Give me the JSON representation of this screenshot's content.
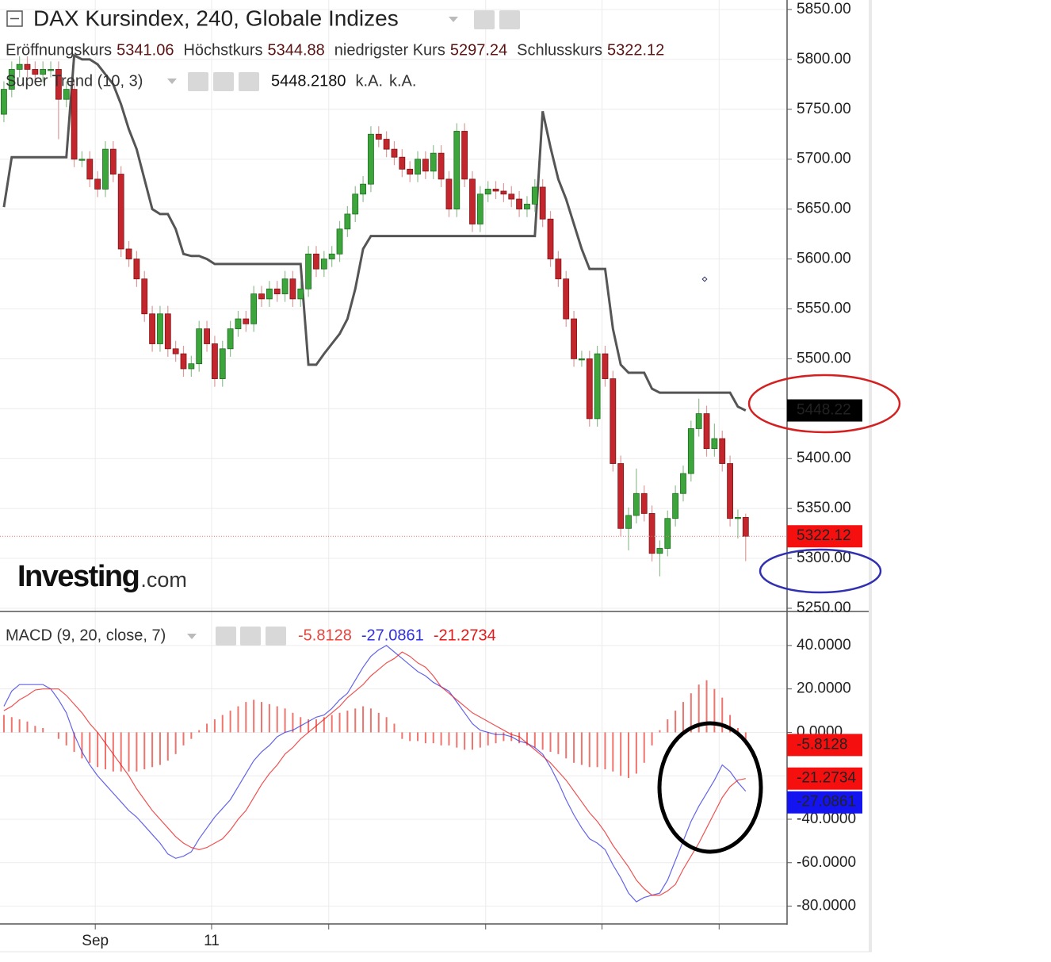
{
  "chart_data": [
    {
      "type": "candlestick",
      "title": "DAX Kursindex, 240, Globale Indizes",
      "ohlc_legend": [
        {
          "name": "Eröffnungskurs",
          "value": 5341.06
        },
        {
          "name": "Höchstkurs",
          "value": 5344.88
        },
        {
          "name": "niedrigster Kurs",
          "value": 5297.24
        },
        {
          "name": "Schlusskurs",
          "value": 5322.12
        }
      ],
      "ohlc": [
        [
          5745,
          5778,
          5737,
          5770
        ],
        [
          5770,
          5798,
          5762,
          5790
        ],
        [
          5790,
          5803,
          5782,
          5795
        ],
        [
          5795,
          5803,
          5782,
          5790
        ],
        [
          5790,
          5798,
          5777,
          5785
        ],
        [
          5785,
          5798,
          5777,
          5790
        ],
        [
          5790,
          5798,
          5782,
          5790
        ],
        [
          5790,
          5798,
          5720,
          5760
        ],
        [
          5760,
          5778,
          5752,
          5770
        ],
        [
          5770,
          5778,
          5692,
          5700
        ],
        [
          5700,
          5708,
          5692,
          5700
        ],
        [
          5700,
          5708,
          5672,
          5680
        ],
        [
          5680,
          5688,
          5662,
          5670
        ],
        [
          5670,
          5718,
          5662,
          5710
        ],
        [
          5710,
          5718,
          5677,
          5685
        ],
        [
          5685,
          5693,
          5602,
          5610
        ],
        [
          5610,
          5618,
          5592,
          5600
        ],
        [
          5600,
          5608,
          5572,
          5580
        ],
        [
          5580,
          5588,
          5537,
          5545
        ],
        [
          5545,
          5553,
          5507,
          5515
        ],
        [
          5515,
          5553,
          5507,
          5545
        ],
        [
          5545,
          5553,
          5502,
          5510
        ],
        [
          5510,
          5518,
          5497,
          5505
        ],
        [
          5505,
          5513,
          5482,
          5490
        ],
        [
          5490,
          5503,
          5482,
          5495
        ],
        [
          5495,
          5538,
          5487,
          5530
        ],
        [
          5530,
          5538,
          5507,
          5515
        ],
        [
          5515,
          5523,
          5472,
          5480
        ],
        [
          5480,
          5518,
          5472,
          5510
        ],
        [
          5510,
          5538,
          5502,
          5530
        ],
        [
          5530,
          5548,
          5522,
          5540
        ],
        [
          5540,
          5548,
          5527,
          5535
        ],
        [
          5535,
          5573,
          5527,
          5565
        ],
        [
          5565,
          5573,
          5552,
          5560
        ],
        [
          5560,
          5578,
          5552,
          5570
        ],
        [
          5570,
          5578,
          5557,
          5565
        ],
        [
          5565,
          5588,
          5557,
          5580
        ],
        [
          5580,
          5588,
          5552,
          5560
        ],
        [
          5560,
          5578,
          5552,
          5570
        ],
        [
          5570,
          5613,
          5562,
          5605
        ],
        [
          5605,
          5613,
          5582,
          5590
        ],
        [
          5590,
          5608,
          5582,
          5600
        ],
        [
          5600,
          5613,
          5592,
          5605
        ],
        [
          5605,
          5638,
          5597,
          5630
        ],
        [
          5630,
          5653,
          5622,
          5645
        ],
        [
          5645,
          5673,
          5637,
          5665
        ],
        [
          5665,
          5683,
          5657,
          5675
        ],
        [
          5675,
          5733,
          5667,
          5725
        ],
        [
          5725,
          5733,
          5712,
          5720
        ],
        [
          5720,
          5728,
          5702,
          5710
        ],
        [
          5710,
          5718,
          5694,
          5702
        ],
        [
          5702,
          5710,
          5682,
          5690
        ],
        [
          5690,
          5698,
          5677,
          5685
        ],
        [
          5685,
          5708,
          5677,
          5700
        ],
        [
          5700,
          5708,
          5680,
          5688
        ],
        [
          5688,
          5714,
          5680,
          5706
        ],
        [
          5706,
          5714,
          5672,
          5680
        ],
        [
          5680,
          5688,
          5642,
          5650
        ],
        [
          5650,
          5736,
          5642,
          5728
        ],
        [
          5728,
          5736,
          5672,
          5680
        ],
        [
          5680,
          5688,
          5627,
          5635
        ],
        [
          5635,
          5673,
          5627,
          5665
        ],
        [
          5665,
          5678,
          5657,
          5670
        ],
        [
          5670,
          5678,
          5660,
          5668
        ],
        [
          5668,
          5676,
          5657,
          5665
        ],
        [
          5665,
          5673,
          5652,
          5660
        ],
        [
          5660,
          5668,
          5642,
          5650
        ],
        [
          5650,
          5663,
          5642,
          5655
        ],
        [
          5655,
          5680,
          5647,
          5672
        ],
        [
          5672,
          5680,
          5632,
          5640
        ],
        [
          5640,
          5648,
          5592,
          5600
        ],
        [
          5600,
          5608,
          5572,
          5580
        ],
        [
          5580,
          5588,
          5532,
          5540
        ],
        [
          5540,
          5548,
          5492,
          5500
        ],
        [
          5500,
          5508,
          5492,
          5500
        ],
        [
          5500,
          5508,
          5432,
          5440
        ],
        [
          5440,
          5513,
          5432,
          5505
        ],
        [
          5505,
          5513,
          5472,
          5480
        ],
        [
          5480,
          5488,
          5387,
          5395
        ],
        [
          5395,
          5403,
          5322,
          5330
        ],
        [
          5330,
          5351,
          5308,
          5343
        ],
        [
          5343,
          5390,
          5335,
          5365
        ],
        [
          5365,
          5373,
          5337,
          5345
        ],
        [
          5345,
          5353,
          5297,
          5305
        ],
        [
          5305,
          5318,
          5282,
          5310
        ],
        [
          5310,
          5348,
          5302,
          5340
        ],
        [
          5340,
          5373,
          5332,
          5365
        ],
        [
          5365,
          5393,
          5357,
          5385
        ],
        [
          5385,
          5438,
          5377,
          5430
        ],
        [
          5430,
          5460,
          5422,
          5445
        ],
        [
          5445,
          5453,
          5402,
          5410
        ],
        [
          5410,
          5435,
          5402,
          5420
        ],
        [
          5420,
          5428,
          5387,
          5395
        ],
        [
          5395,
          5403,
          5332,
          5340
        ],
        [
          5340,
          5349,
          5320,
          5341.06
        ],
        [
          5341.06,
          5344.88,
          5297.24,
          5322.12
        ]
      ],
      "up_color": "#3ca63c",
      "down_color": "#c3262d",
      "overlay": {
        "name": "Super Trend (10, 3)",
        "color": "#555555",
        "values": [
          5652,
          5702,
          5702,
          5702,
          5702,
          5702,
          5702,
          5702,
          5702,
          5804,
          5800,
          5800,
          5795,
          5785,
          5775,
          5755,
          5730,
          5710,
          5680,
          5650,
          5645,
          5645,
          5630,
          5605,
          5603,
          5603,
          5600,
          5595,
          5595,
          5595,
          5595,
          5595,
          5595,
          5595,
          5595,
          5595,
          5595,
          5595,
          5595,
          5494,
          5494,
          5505,
          5515,
          5525,
          5540,
          5570,
          5610,
          5623,
          5623,
          5623,
          5623,
          5623,
          5623,
          5623,
          5623,
          5623,
          5623,
          5623,
          5623,
          5623,
          5623,
          5623,
          5623,
          5623,
          5623,
          5623,
          5623,
          5623,
          5623,
          5748,
          5712,
          5680,
          5660,
          5635,
          5610,
          5590,
          5590,
          5590,
          5530,
          5494,
          5486,
          5486,
          5486,
          5470,
          5466,
          5466,
          5466,
          5466,
          5466,
          5466,
          5466,
          5466,
          5466,
          5466,
          5452,
          5448.218
        ],
        "last_value": {
          "value": 5448.218,
          "label": "5448.2180"
        },
        "status": [
          "k.A.",
          "k.A."
        ],
        "marker_label": "5448.22"
      },
      "brand": "Investing",
      "brand_suffix": ".com",
      "xlim": [
        -0.5,
        100.3
      ],
      "ylim": [
        5247.6,
        5859.5
      ],
      "yticks": [
        {
          "value": 5250,
          "label": "5250.00"
        },
        {
          "value": 5300,
          "label": "5300.00"
        },
        {
          "value": 5350,
          "label": "5350.00"
        },
        {
          "value": 5400,
          "label": "5400.00"
        },
        {
          "value": 5450,
          "label": "5450.00"
        },
        {
          "value": 5500,
          "label": "5500.00"
        },
        {
          "value": 5550,
          "label": "5550.00"
        },
        {
          "value": 5600,
          "label": "5600.00"
        },
        {
          "value": 5650,
          "label": "5650.00"
        },
        {
          "value": 5700,
          "label": "5700.00"
        },
        {
          "value": 5750,
          "label": "5750.00"
        },
        {
          "value": 5800,
          "label": "5800.00"
        },
        {
          "value": 5850,
          "label": "5850.00"
        }
      ],
      "grid": true
    },
    {
      "type": "macd",
      "title": "MACD (9, 20, close, 7)",
      "series": [
        {
          "style": "bar",
          "color": "#e8453c",
          "values": [
            8,
            7,
            6,
            5,
            3,
            2,
            0,
            -3,
            -6,
            -9,
            -12,
            -14,
            -16,
            -17,
            -18,
            -18,
            -18,
            -18,
            -17,
            -16,
            -15,
            -13,
            -10,
            -6,
            -3,
            1,
            4,
            6,
            8,
            10,
            12,
            14,
            15,
            14,
            13,
            12,
            11,
            9,
            7,
            6,
            6,
            7,
            8,
            9,
            10,
            11,
            12,
            11,
            9,
            7,
            4,
            -3,
            -4,
            -4,
            -5,
            -5,
            -6,
            -6,
            -7,
            -8,
            -8,
            -7,
            -6,
            -5,
            -4,
            -4,
            -5,
            -6,
            -7,
            -8,
            -9,
            -10,
            -12,
            -14,
            -15,
            -16,
            -16,
            -17,
            -18,
            -20,
            -21,
            -19,
            -14,
            -6,
            1,
            6,
            10,
            14,
            18,
            22,
            24,
            20,
            16,
            8,
            2,
            -5.8128
          ]
        },
        {
          "style": "line",
          "color": "#3030e0",
          "values": [
            12,
            19,
            22,
            22,
            22,
            22,
            20,
            15,
            9,
            -1,
            -9,
            -15,
            -20,
            -24,
            -28,
            -32,
            -36,
            -39,
            -43,
            -47,
            -51,
            -56,
            -58,
            -57,
            -55,
            -49,
            -44,
            -39,
            -35,
            -31,
            -25,
            -19,
            -13,
            -9,
            -6,
            -2,
            0,
            1,
            3,
            5,
            7,
            8,
            11,
            15,
            18,
            24,
            30,
            35,
            38,
            40,
            37,
            34,
            31,
            28,
            26,
            23,
            21,
            19,
            14,
            9,
            4,
            1,
            0,
            -1,
            -1,
            -2,
            -4,
            -5,
            -7,
            -10,
            -16,
            -23,
            -31,
            -38,
            -44,
            -49,
            -51,
            -54,
            -61,
            -67,
            -74,
            -78,
            -76,
            -75,
            -74,
            -68,
            -59,
            -50,
            -41,
            -34,
            -28,
            -22,
            -15,
            -18,
            -23,
            -27.0861
          ]
        },
        {
          "style": "line",
          "color": "#e81818",
          "values": [
            10,
            12,
            15,
            17,
            19.5,
            20,
            20,
            20,
            17,
            13,
            9,
            4,
            0,
            -5,
            -10,
            -15,
            -20,
            -26,
            -31,
            -36,
            -40,
            -44,
            -48,
            -51,
            -53,
            -54,
            -53,
            -51,
            -49,
            -45,
            -40,
            -36,
            -30,
            -24,
            -19,
            -15,
            -10,
            -7,
            -3,
            0,
            3,
            6,
            9,
            12,
            16,
            19,
            22,
            26,
            29,
            32,
            34,
            37,
            35,
            32,
            30,
            26,
            21,
            18,
            15,
            12,
            9,
            7,
            5,
            3,
            1,
            -1,
            -2,
            -5,
            -8,
            -11,
            -14,
            -18,
            -22,
            -27,
            -32,
            -37,
            -41,
            -46,
            -52,
            -57,
            -62,
            -68,
            -72,
            -75,
            -75,
            -73,
            -70,
            -63,
            -57,
            -51,
            -44,
            -37,
            -30,
            -25,
            -22,
            -21.2734
          ]
        }
      ],
      "xlim": [
        -0.5,
        100.3
      ],
      "ylim": [
        -88.2,
        55.3
      ],
      "yticks": [
        {
          "value": 40,
          "label": "40.0000"
        },
        {
          "value": 20,
          "label": "20.0000"
        },
        {
          "value": 0,
          "label": "0.0000"
        },
        {
          "value": -20,
          "label": "-20.0000"
        },
        {
          "value": -40,
          "label": "-40.0000"
        },
        {
          "value": -60,
          "label": "-60.0000"
        },
        {
          "value": -80,
          "label": "-80.0000"
        }
      ],
      "xticks": [
        {
          "value": 11.7,
          "label": "Sep"
        },
        {
          "value": 26.6,
          "label": "11"
        },
        {
          "value": 41.6,
          "label": null
        },
        {
          "value": 61.7,
          "label": null
        },
        {
          "value": 76.6,
          "label": null
        },
        {
          "value": 91.6,
          "label": null
        }
      ],
      "grid": true
    }
  ]
}
